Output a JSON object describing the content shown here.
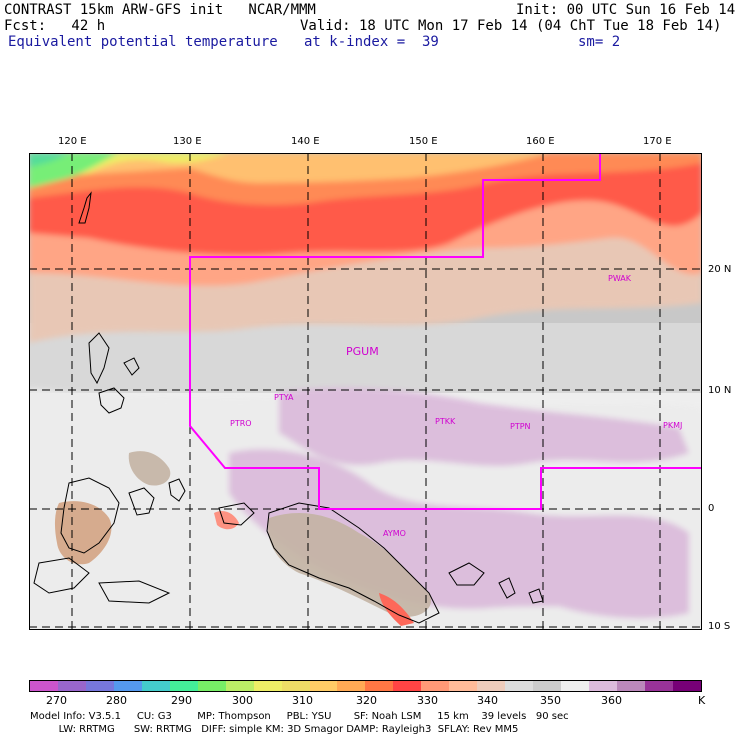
{
  "header": {
    "title": "CONTRAST 15km ARW-GFS init   NCAR/MMM",
    "forecast": "Fcst:   42 h",
    "field": "Equivalent potential temperature",
    "init": "Init: 00 UTC Sun 16 Feb 14",
    "valid": "Valid: 18 UTC Mon 17 Feb 14 (04 ChT Tue 18 Feb 14)",
    "level": "at k-index =  39",
    "smoothing": "sm= 2"
  },
  "axes": {
    "lon_labels": [
      "120 E",
      "130 E",
      "140 E",
      "150 E",
      "160 E",
      "170 E"
    ],
    "lat_labels": [
      "20 N",
      "10 N",
      "0",
      "10 S"
    ]
  },
  "stations": [
    {
      "id": "PGUM",
      "large": true
    },
    {
      "id": "PTYA",
      "large": false
    },
    {
      "id": "PTRO",
      "large": false
    },
    {
      "id": "PTKK",
      "large": false
    },
    {
      "id": "PTPN",
      "large": false
    },
    {
      "id": "PKMJ",
      "large": false
    },
    {
      "id": "PWAK",
      "large": false
    },
    {
      "id": "AYMO",
      "large": false
    }
  ],
  "colorbar": {
    "colors": [
      "#cc55cc",
      "#9966cc",
      "#7777dd",
      "#5599ee",
      "#44cccc",
      "#44ee99",
      "#77ee66",
      "#bbee66",
      "#eeee66",
      "#eedd66",
      "#ffcc66",
      "#ffaa55",
      "#ff7744",
      "#ff4444",
      "#ff9977",
      "#ffbb99",
      "#eeccbb",
      "#dddddd",
      "#cccccc",
      "#eeeeee",
      "#ddbbdd",
      "#bb88bb",
      "#993399",
      "#770077"
    ],
    "labels": [
      "270",
      "280",
      "290",
      "300",
      "310",
      "320",
      "330",
      "340",
      "350",
      "360"
    ],
    "unit": "K"
  },
  "footer": {
    "line1": "Model Info: V3.5.1     CU: G3        MP: Thompson     PBL: YSU       SF: Noah LSM     15 km    39 levels   90 sec",
    "line2": "         LW: RRTMG      SW: RRTMG   DIFF: simple KM: 3D Smagor DAMP: Rayleigh3  SFLAY: Rev MM5"
  }
}
